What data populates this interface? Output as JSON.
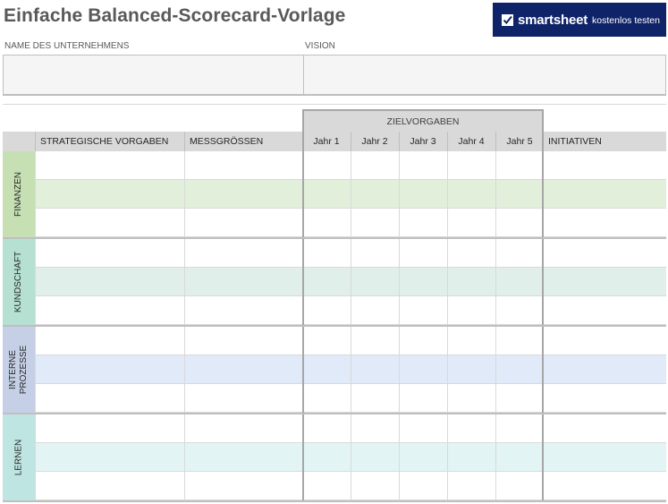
{
  "title": "Einfache Balanced-Scorecard-Vorlage",
  "banner": {
    "brand": "smartsheet",
    "cta": "kostenlos testen",
    "background": "#0f2368",
    "icon": "smartsheet-check-icon"
  },
  "fields": {
    "company_label": "NAME DES UNTERNEHMENS",
    "company_value": "",
    "vision_label": "VISION",
    "vision_value": ""
  },
  "table": {
    "targets_header": "ZIELVORGABEN",
    "columns": {
      "strategic": "STRATEGISCHE VORGABEN",
      "measures": "MESSGRÖSSEN",
      "years": [
        "Jahr 1",
        "Jahr 2",
        "Jahr 3",
        "Jahr 4",
        "Jahr 5"
      ],
      "initiatives": "INITIATIVEN"
    },
    "sections": [
      {
        "label": "FINANZEN",
        "label_color": "#c6e0b4",
        "band_color": "#e2efda"
      },
      {
        "label": "KUNDSCHAFT",
        "label_color": "#b5e0d2",
        "band_color": "#e0efe9"
      },
      {
        "label": "INTERNE PROZESSE",
        "label_color": "#c5d0e6",
        "band_color": "#e1eaf8"
      },
      {
        "label": "LERNEN",
        "label_color": "#bfe5e3",
        "band_color": "#e2f4f4"
      }
    ]
  }
}
